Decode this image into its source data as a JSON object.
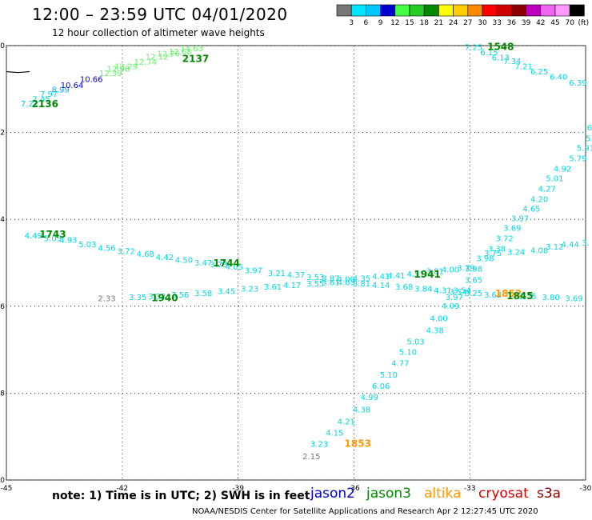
{
  "header": {
    "title": "12:00 – 23:59 UTC 04/01/2020",
    "subtitle": "12 hour collection of altimeter wave heights"
  },
  "colorbar": {
    "labels": [
      "3",
      "6",
      "9",
      "12",
      "15",
      "18",
      "21",
      "24",
      "27",
      "30",
      "33",
      "36",
      "39",
      "42",
      "45",
      "70",
      "(ft)"
    ],
    "colors": [
      "#777777",
      "#00e5ff",
      "#00c8ff",
      "#0000d0",
      "#44ff44",
      "#22cc22",
      "#008800",
      "#ffff00",
      "#ffcc00",
      "#ff8800",
      "#ff0000",
      "#cc0000",
      "#880000",
      "#bb00bb",
      "#ee66ee",
      "#ff99ff",
      "#000000"
    ]
  },
  "footer": {
    "note": "note:  1) Time is in UTC;  2) SWH is in feet",
    "credit": "NOAA/NESDIS Center for Satellite Applications and Research   Apr  2 12:27:45 UTC 2020",
    "satellites": [
      {
        "name": "jason2",
        "color": "#0000cc"
      },
      {
        "name": "jason3",
        "color": "#008800"
      },
      {
        "name": "altika",
        "color": "#ff9900"
      },
      {
        "name": "cryosat",
        "color": "#dd0000"
      },
      {
        "name": "s3a",
        "color": "#880000"
      }
    ]
  },
  "chart_data": {
    "type": "scatter",
    "xlim": [
      -45,
      -30
    ],
    "ylim": [
      -70,
      -60
    ],
    "x_ticks": [
      "-45",
      "-42",
      "-39",
      "-36",
      "-33",
      "-30"
    ],
    "y_ticks": [
      "-60",
      "-62",
      "-64",
      "-66",
      "-68",
      "-70"
    ],
    "grid": true,
    "coast": [
      [
        -45,
        -60.6
      ],
      [
        -44.7,
        -60.62
      ],
      [
        -44.4,
        -60.6
      ]
    ],
    "points": [
      {
        "x": -44.4,
        "y": -61.4,
        "v": "7.21",
        "c": "#00d8e0"
      },
      {
        "x": -44.1,
        "y": -61.3,
        "v": "7.45",
        "c": "#00d8e0"
      },
      {
        "x": -43.9,
        "y": -61.18,
        "v": "7.97",
        "c": "#00d8e0"
      },
      {
        "x": -43.6,
        "y": -61.08,
        "v": "8.99",
        "c": "#00aaff"
      },
      {
        "x": -43.3,
        "y": -60.98,
        "v": "10.64",
        "c": "#0000cc"
      },
      {
        "x": -42.8,
        "y": -60.84,
        "v": "10.66",
        "c": "#0000cc"
      },
      {
        "x": -42.3,
        "y": -60.7,
        "v": "12.39",
        "c": "#66ee66"
      },
      {
        "x": -42.1,
        "y": -60.6,
        "v": "12.98",
        "c": "#66ee66"
      },
      {
        "x": -41.9,
        "y": -60.54,
        "v": "12.29",
        "c": "#66ee66"
      },
      {
        "x": -41.4,
        "y": -60.44,
        "v": "12.74",
        "c": "#66ee66"
      },
      {
        "x": -41.1,
        "y": -60.32,
        "v": "12.12",
        "c": "#66ee66"
      },
      {
        "x": -40.8,
        "y": -60.25,
        "v": "12.26",
        "c": "#66ee66"
      },
      {
        "x": -40.5,
        "y": -60.2,
        "v": "12.68",
        "c": "#66ee66"
      },
      {
        "x": -40.2,
        "y": -60.13,
        "v": "14.63",
        "c": "#66ee66"
      },
      {
        "x": -32.9,
        "y": -60.1,
        "v": "7.25",
        "c": "#00d8e0"
      },
      {
        "x": -32.5,
        "y": -60.22,
        "v": "6.15",
        "c": "#00d8e0"
      },
      {
        "x": -32.2,
        "y": -60.34,
        "v": "6.13",
        "c": "#00d8e0"
      },
      {
        "x": -31.9,
        "y": -60.42,
        "v": "7.34",
        "c": "#00d8e0"
      },
      {
        "x": -31.6,
        "y": -60.54,
        "v": "7.21",
        "c": "#00d8e0"
      },
      {
        "x": -31.2,
        "y": -60.66,
        "v": "6.25",
        "c": "#00d8e0"
      },
      {
        "x": -30.7,
        "y": -60.78,
        "v": "6.40",
        "c": "#00d8e0"
      },
      {
        "x": -30.2,
        "y": -60.92,
        "v": "6.39",
        "c": "#00d8e0"
      },
      {
        "x": -29.9,
        "y": -61.95,
        "v": "6",
        "c": "#00d8e0"
      },
      {
        "x": -29.9,
        "y": -62.2,
        "v": "5.",
        "c": "#00d8e0"
      },
      {
        "x": -30.0,
        "y": -62.42,
        "v": "5.91",
        "c": "#00d8e0"
      },
      {
        "x": -30.2,
        "y": -62.66,
        "v": "5.79",
        "c": "#00d8e0"
      },
      {
        "x": -30.6,
        "y": -62.9,
        "v": "4.92",
        "c": "#00d8e0"
      },
      {
        "x": -30.8,
        "y": -63.12,
        "v": "5.01",
        "c": "#00d8e0"
      },
      {
        "x": -31.0,
        "y": -63.36,
        "v": "4.27",
        "c": "#00d8e0"
      },
      {
        "x": -31.2,
        "y": -63.6,
        "v": "4.20",
        "c": "#00d8e0"
      },
      {
        "x": -31.4,
        "y": -63.82,
        "v": "4.65",
        "c": "#00d8e0"
      },
      {
        "x": -31.7,
        "y": -64.04,
        "v": "3.97",
        "c": "#00d8e0"
      },
      {
        "x": -31.9,
        "y": -64.26,
        "v": "3.69",
        "c": "#00d8e0"
      },
      {
        "x": -32.1,
        "y": -64.5,
        "v": "3.72",
        "c": "#00d8e0"
      },
      {
        "x": -32.3,
        "y": -64.74,
        "v": "3.38",
        "c": "#00d8e0"
      },
      {
        "x": -32.4,
        "y": -64.84,
        "v": "3.75",
        "c": "#00d8e0"
      },
      {
        "x": -31.8,
        "y": -64.82,
        "v": "3.24",
        "c": "#00d8e0"
      },
      {
        "x": -31.2,
        "y": -64.78,
        "v": "4.08",
        "c": "#00d8e0"
      },
      {
        "x": -30.8,
        "y": -64.7,
        "v": "3.12",
        "c": "#00d8e0"
      },
      {
        "x": -30.4,
        "y": -64.64,
        "v": "4.44",
        "c": "#00d8e0"
      },
      {
        "x": -30.0,
        "y": -64.6,
        "v": "3.",
        "c": "#00d8e0"
      },
      {
        "x": -32.6,
        "y": -64.96,
        "v": "3.98",
        "c": "#00d8e0"
      },
      {
        "x": -32.9,
        "y": -65.2,
        "v": "3.98",
        "c": "#00d8e0"
      },
      {
        "x": -32.9,
        "y": -65.46,
        "v": "3.65",
        "c": "#00d8e0"
      },
      {
        "x": -33.2,
        "y": -65.7,
        "v": "3.54",
        "c": "#00d8e0"
      },
      {
        "x": -33.4,
        "y": -65.86,
        "v": "3.97",
        "c": "#00d8e0"
      },
      {
        "x": -33.5,
        "y": -66.06,
        "v": "4.09",
        "c": "#00d8e0"
      },
      {
        "x": -33.8,
        "y": -66.34,
        "v": "4.00",
        "c": "#00d8e0"
      },
      {
        "x": -33.9,
        "y": -66.62,
        "v": "4.38",
        "c": "#00d8e0"
      },
      {
        "x": -34.4,
        "y": -66.88,
        "v": "5.03",
        "c": "#00d8e0"
      },
      {
        "x": -34.6,
        "y": -67.12,
        "v": "5.10",
        "c": "#00d8e0"
      },
      {
        "x": -34.8,
        "y": -67.38,
        "v": "4.77",
        "c": "#00d8e0"
      },
      {
        "x": -35.1,
        "y": -67.64,
        "v": "5.10",
        "c": "#00d8e0"
      },
      {
        "x": -35.3,
        "y": -67.9,
        "v": "6.06",
        "c": "#00d8e0"
      },
      {
        "x": -35.6,
        "y": -68.16,
        "v": "4.99",
        "c": "#00d8e0"
      },
      {
        "x": -35.8,
        "y": -68.44,
        "v": "4.38",
        "c": "#00d8e0"
      },
      {
        "x": -36.2,
        "y": -68.72,
        "v": "4.21",
        "c": "#00d8e0"
      },
      {
        "x": -36.5,
        "y": -68.98,
        "v": "4.15",
        "c": "#00d8e0"
      },
      {
        "x": -36.9,
        "y": -69.24,
        "v": "3.23",
        "c": "#00d8e0"
      },
      {
        "x": -37.1,
        "y": -69.52,
        "v": "2.15",
        "c": "#777777"
      },
      {
        "x": -44.3,
        "y": -64.44,
        "v": "4.49",
        "c": "#00d8e0"
      },
      {
        "x": -43.8,
        "y": -64.5,
        "v": "5.05",
        "c": "#00d8e0"
      },
      {
        "x": -43.4,
        "y": -64.54,
        "v": "4.93",
        "c": "#00d8e0"
      },
      {
        "x": -42.9,
        "y": -64.64,
        "v": "5.03",
        "c": "#00d8e0"
      },
      {
        "x": -42.4,
        "y": -64.72,
        "v": "4.56",
        "c": "#00d8e0"
      },
      {
        "x": -41.9,
        "y": -64.8,
        "v": "3.72",
        "c": "#00d8e0"
      },
      {
        "x": -41.4,
        "y": -64.86,
        "v": "4.68",
        "c": "#00d8e0"
      },
      {
        "x": -40.9,
        "y": -64.94,
        "v": "4.42",
        "c": "#00d8e0"
      },
      {
        "x": -40.4,
        "y": -65.0,
        "v": "4.50",
        "c": "#00d8e0"
      },
      {
        "x": -39.9,
        "y": -65.06,
        "v": "3.47",
        "c": "#00d8e0"
      },
      {
        "x": -39.5,
        "y": -65.1,
        "v": "3.73",
        "c": "#00d8e0"
      },
      {
        "x": -39.1,
        "y": -65.16,
        "v": "4.05",
        "c": "#00d8e0"
      },
      {
        "x": -38.6,
        "y": -65.24,
        "v": "3.97",
        "c": "#00d8e0"
      },
      {
        "x": -38.0,
        "y": -65.3,
        "v": "3.21",
        "c": "#00d8e0"
      },
      {
        "x": -37.5,
        "y": -65.34,
        "v": "4.37",
        "c": "#00d8e0"
      },
      {
        "x": -37.0,
        "y": -65.4,
        "v": "3.53",
        "c": "#00d8e0"
      },
      {
        "x": -36.6,
        "y": -65.42,
        "v": "3.87",
        "c": "#00d8e0"
      },
      {
        "x": -36.2,
        "y": -65.44,
        "v": "4.00",
        "c": "#00d8e0"
      },
      {
        "x": -35.8,
        "y": -65.42,
        "v": "4.35",
        "c": "#00d8e0"
      },
      {
        "x": -35.3,
        "y": -65.38,
        "v": "4.41",
        "c": "#00d8e0"
      },
      {
        "x": -34.9,
        "y": -65.36,
        "v": "4.41",
        "c": "#00d8e0"
      },
      {
        "x": -34.4,
        "y": -65.32,
        "v": "4.51",
        "c": "#00d8e0"
      },
      {
        "x": -33.9,
        "y": -65.26,
        "v": "3.81",
        "c": "#00d8e0"
      },
      {
        "x": -33.5,
        "y": -65.22,
        "v": "4.00",
        "c": "#00d8e0"
      },
      {
        "x": -33.1,
        "y": -65.18,
        "v": "3.79",
        "c": "#00d8e0"
      },
      {
        "x": -42.4,
        "y": -65.88,
        "v": "2.33",
        "c": "#777777"
      },
      {
        "x": -41.6,
        "y": -65.86,
        "v": "3.35",
        "c": "#00d8e0"
      },
      {
        "x": -41.1,
        "y": -65.84,
        "v": "3.33",
        "c": "#00d8e0"
      },
      {
        "x": -40.5,
        "y": -65.8,
        "v": "3.56",
        "c": "#00d8e0"
      },
      {
        "x": -39.9,
        "y": -65.76,
        "v": "3.58",
        "c": "#00d8e0"
      },
      {
        "x": -39.3,
        "y": -65.72,
        "v": "3.45",
        "c": "#00d8e0"
      },
      {
        "x": -38.7,
        "y": -65.66,
        "v": "3.23",
        "c": "#00d8e0"
      },
      {
        "x": -38.1,
        "y": -65.62,
        "v": "3.61",
        "c": "#00d8e0"
      },
      {
        "x": -37.6,
        "y": -65.58,
        "v": "4.17",
        "c": "#00d8e0"
      },
      {
        "x": -37.0,
        "y": -65.54,
        "v": "3.55",
        "c": "#00d8e0"
      },
      {
        "x": -36.6,
        "y": -65.52,
        "v": "3.61",
        "c": "#00d8e0"
      },
      {
        "x": -36.2,
        "y": -65.52,
        "v": "4.03",
        "c": "#00d8e0"
      },
      {
        "x": -35.8,
        "y": -65.54,
        "v": "3.81",
        "c": "#00d8e0"
      },
      {
        "x": -35.3,
        "y": -65.58,
        "v": "4.14",
        "c": "#00d8e0"
      },
      {
        "x": -34.7,
        "y": -65.62,
        "v": "3.68",
        "c": "#00d8e0"
      },
      {
        "x": -34.2,
        "y": -65.66,
        "v": "3.84",
        "c": "#00d8e0"
      },
      {
        "x": -33.7,
        "y": -65.7,
        "v": "4.31",
        "c": "#00d8e0"
      },
      {
        "x": -33.3,
        "y": -65.74,
        "v": "3.54",
        "c": "#00d8e0"
      },
      {
        "x": -32.9,
        "y": -65.76,
        "v": "3.25",
        "c": "#00d8e0"
      },
      {
        "x": -32.4,
        "y": -65.8,
        "v": "3.63",
        "c": "#00d8e0"
      },
      {
        "x": -31.5,
        "y": -65.84,
        "v": "3.75",
        "c": "#00d8e0"
      },
      {
        "x": -30.9,
        "y": -65.86,
        "v": "3.80",
        "c": "#00d8e0"
      },
      {
        "x": -30.3,
        "y": -65.88,
        "v": "3.69",
        "c": "#00d8e0"
      }
    ],
    "time_labels": [
      {
        "x": -44.0,
        "y": -61.42,
        "v": "2136",
        "c": "#008800"
      },
      {
        "x": -40.1,
        "y": -60.38,
        "v": "2137",
        "c": "#008800"
      },
      {
        "x": -32.2,
        "y": -60.1,
        "v": "1548",
        "c": "#008800"
      },
      {
        "x": -43.8,
        "y": -64.42,
        "v": "1743",
        "c": "#008800"
      },
      {
        "x": -39.3,
        "y": -65.08,
        "v": "1744",
        "c": "#008800"
      },
      {
        "x": -40.9,
        "y": -65.88,
        "v": "1940",
        "c": "#008800"
      },
      {
        "x": -34.1,
        "y": -65.34,
        "v": "1941",
        "c": "#008800"
      },
      {
        "x": -32.0,
        "y": -65.78,
        "v": "1852",
        "c": "#ff9900"
      },
      {
        "x": -31.7,
        "y": -65.84,
        "v": "1845",
        "c": "#008800"
      },
      {
        "x": -35.9,
        "y": -69.24,
        "v": "1853",
        "c": "#ff9900"
      }
    ]
  }
}
